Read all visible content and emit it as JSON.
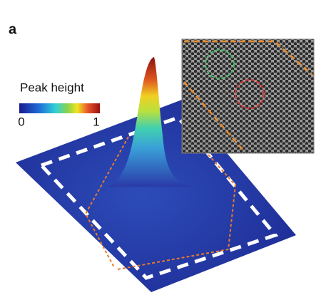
{
  "panel_label": "a",
  "colorbar": {
    "label": "Peak height",
    "ticks": [
      0,
      1
    ]
  }
}
